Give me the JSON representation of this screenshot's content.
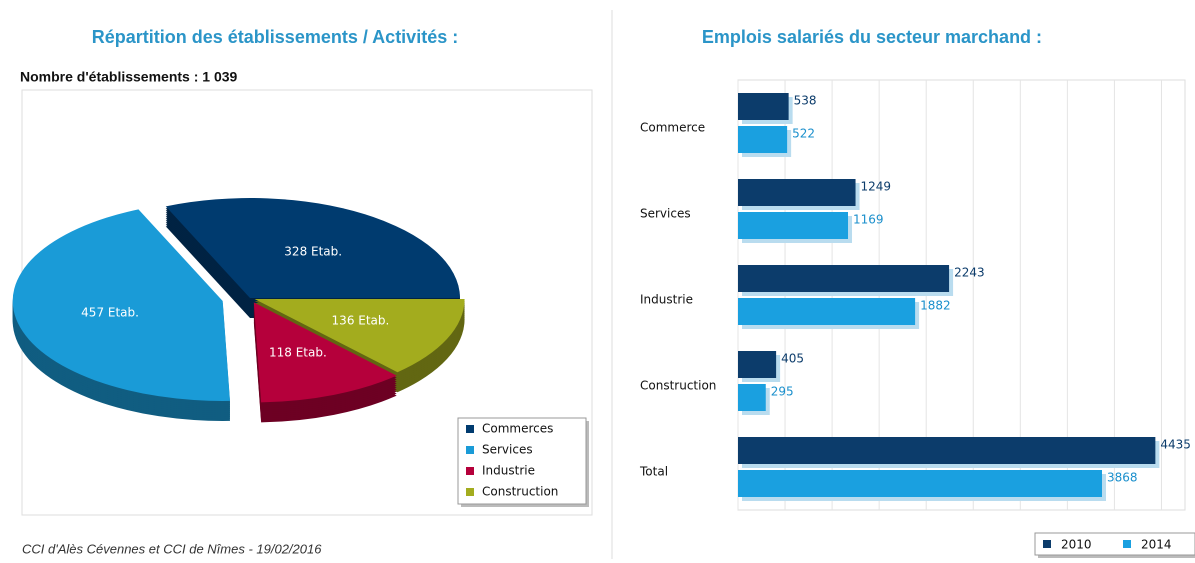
{
  "chart_data": [
    {
      "type": "pie",
      "title": "Répartition des établissements / Activités :",
      "subtitle": "Nombre d'établissements : 1 039",
      "categories": [
        "Commerces",
        "Services",
        "Industrie",
        "Construction"
      ],
      "values": [
        328,
        457,
        118,
        136
      ],
      "value_labels": [
        "328 Etab.",
        "457 Etab.",
        "118 Etab.",
        "136 Etab."
      ],
      "colors": [
        "#003b6f",
        "#1a9bd7",
        "#b5003b",
        "#a3ac1e"
      ],
      "legend": "bottom-right"
    },
    {
      "type": "hbar",
      "title": "Emplois salariés du secteur marchand :",
      "categories": [
        "Commerce",
        "Services",
        "Industrie",
        "Construction",
        "Total"
      ],
      "series": [
        {
          "name": "2010",
          "color": "#0c3c6b",
          "values": [
            538,
            1249,
            2243,
            405,
            4435
          ]
        },
        {
          "name": "2014",
          "color": "#1aa0e0",
          "values": [
            522,
            1169,
            1882,
            295,
            3868
          ]
        }
      ],
      "xlim": [
        0,
        4750
      ],
      "xticks": [
        0,
        500,
        1000,
        1500,
        2000,
        2500,
        3000,
        3500,
        4000,
        4500
      ],
      "grid": true,
      "legend": "bottom-right"
    }
  ],
  "source": "CCI d'Alès Cévennes et CCI de Nîmes - 19/02/2016"
}
